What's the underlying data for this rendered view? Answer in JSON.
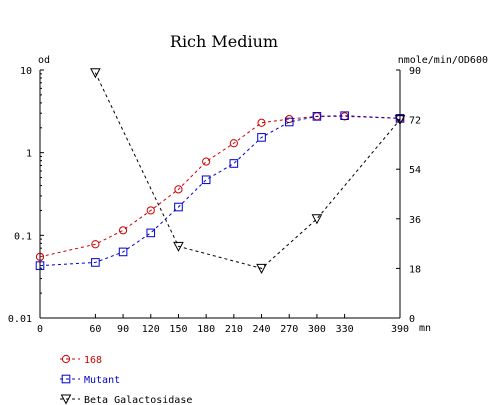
{
  "chart_data": {
    "type": "line",
    "title": "Rich Medium",
    "xlabel": "mn",
    "ylabel_left": "od",
    "ylabel_right": "nmole/min/OD600",
    "xlim": [
      0,
      390
    ],
    "ylim_left": [
      0.01,
      10
    ],
    "yscale_left": "log",
    "ylim_right": [
      0,
      90
    ],
    "x_ticks": [
      0,
      60,
      90,
      120,
      150,
      180,
      210,
      240,
      270,
      300,
      330,
      390
    ],
    "y_left_ticks": [
      {
        "value": 10,
        "label": "10"
      },
      {
        "value": 1,
        "label": "1"
      },
      {
        "value": 0.1,
        "label": "0.1"
      },
      {
        "value": 0.01,
        "label": "0.01"
      }
    ],
    "y_right_ticks": [
      0,
      18,
      36,
      54,
      72,
      90
    ],
    "grid": false,
    "legend_position": "bottom-left",
    "series": [
      {
        "name": "168",
        "axis": "left",
        "color": "#cc0000",
        "marker": "circle",
        "x": [
          0,
          60,
          90,
          120,
          150,
          180,
          210,
          240,
          270,
          300,
          330,
          390
        ],
        "values": [
          0.055,
          0.078,
          0.115,
          0.2,
          0.36,
          0.78,
          1.3,
          2.3,
          2.55,
          2.75,
          2.75,
          2.6
        ]
      },
      {
        "name": "Mutant",
        "axis": "left",
        "color": "#0000cc",
        "marker": "square",
        "x": [
          0,
          60,
          90,
          120,
          150,
          180,
          210,
          240,
          270,
          300,
          330,
          390
        ],
        "values": [
          0.043,
          0.047,
          0.063,
          0.107,
          0.22,
          0.47,
          0.74,
          1.53,
          2.35,
          2.75,
          2.8,
          2.6
        ]
      },
      {
        "name": "Beta Galactosidase",
        "axis": "right",
        "color": "#000000",
        "marker": "triangle-down",
        "x": [
          60,
          150,
          240,
          300,
          390
        ],
        "values": [
          89,
          26,
          18,
          36,
          72
        ]
      }
    ]
  }
}
